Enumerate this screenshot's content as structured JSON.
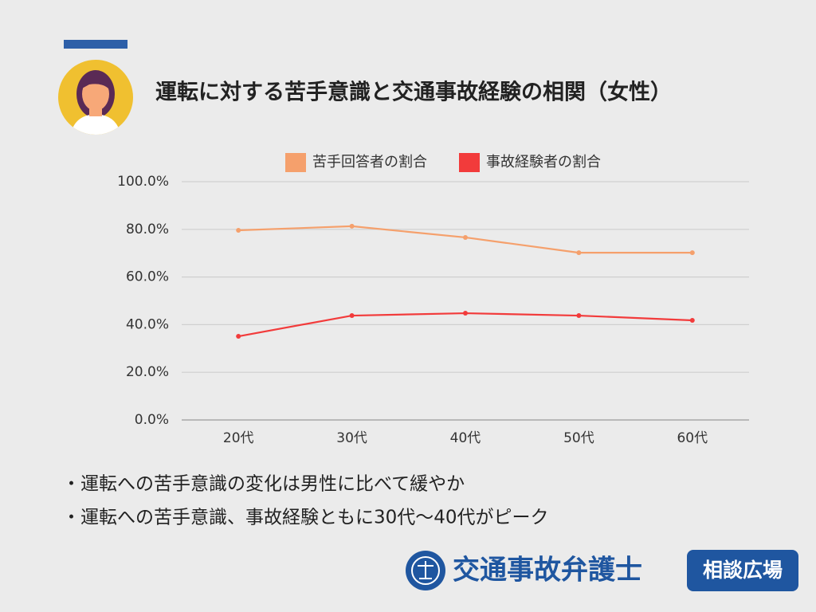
{
  "title": "運転に対する苦手意識と交通事故経験の相関（女性）",
  "chart_data": {
    "type": "line",
    "categories": [
      "20代",
      "30代",
      "40代",
      "50代",
      "60代"
    ],
    "series": [
      {
        "name": "苦手回答者の割合",
        "color": "#f5a06c",
        "values": [
          79.6,
          81.3,
          76.6,
          70.2,
          70.2
        ]
      },
      {
        "name": "事故経験者の割合",
        "color": "#f23b3b",
        "values": [
          35.1,
          43.8,
          44.8,
          43.8,
          41.8
        ]
      }
    ],
    "ylim": [
      0,
      100
    ],
    "yticks": [
      {
        "value": 0,
        "label": "0.0%"
      },
      {
        "value": 20,
        "label": "20.0%"
      },
      {
        "value": 40,
        "label": "40.0%"
      },
      {
        "value": 60,
        "label": "60.0%"
      },
      {
        "value": 80,
        "label": "80.0%"
      },
      {
        "value": 100,
        "label": "100.0%"
      }
    ],
    "grid": true,
    "legend": "top"
  },
  "bullets": [
    "・運転への苦手意識の変化は男性に比べて緩やか",
    "・運転への苦手意識、事故経験ともに30代〜40代がピーク"
  ],
  "logo": {
    "name": "交通事故弁護士",
    "badge": "相談広場"
  }
}
